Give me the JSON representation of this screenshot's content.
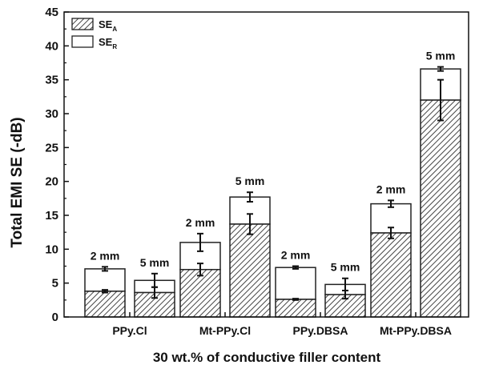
{
  "chart_data": {
    "type": "bar",
    "stacked": true,
    "xlabel": "30 wt.% of conductive filler content",
    "ylabel": "Total EMI SE (-dB)",
    "ylim": [
      0,
      45
    ],
    "yticks": [
      0,
      5,
      10,
      15,
      20,
      25,
      30,
      35,
      40,
      45
    ],
    "categories": [
      "PPy.Cl",
      "Mt-PPy.Cl",
      "PPy.DBSA",
      "Mt-PPy.DBSA"
    ],
    "legend": {
      "position": "top-left",
      "entries": [
        {
          "key": "SE_A",
          "main": "SE",
          "sub": "A",
          "fill": "hatched"
        },
        {
          "key": "SE_R",
          "main": "SE",
          "sub": "R",
          "fill": "white"
        }
      ]
    },
    "bars": [
      {
        "category": "PPy.Cl",
        "label": "2 mm",
        "se_a": 3.8,
        "se_a_err": 0.2,
        "total": 7.1,
        "total_err": 0.3
      },
      {
        "category": "PPy.Cl",
        "label": "5 mm",
        "se_a": 3.6,
        "se_a_err": 0.8,
        "total": 5.4,
        "total_err": 1.0
      },
      {
        "category": "Mt-PPy.Cl",
        "label": "2 mm",
        "se_a": 7.0,
        "se_a_err": 0.9,
        "total": 11.0,
        "total_err": 1.3
      },
      {
        "category": "Mt-PPy.Cl",
        "label": "5 mm",
        "se_a": 13.7,
        "se_a_err": 1.5,
        "total": 17.7,
        "total_err": 0.7
      },
      {
        "category": "PPy.DBSA",
        "label": "2 mm",
        "se_a": 2.6,
        "se_a_err": 0.1,
        "total": 7.3,
        "total_err": 0.2
      },
      {
        "category": "PPy.DBSA",
        "label": "5 mm",
        "se_a": 3.3,
        "se_a_err": 0.6,
        "total": 4.8,
        "total_err": 0.9
      },
      {
        "category": "Mt-PPy.DBSA",
        "label": "2 mm",
        "se_a": 12.4,
        "se_a_err": 0.8,
        "total": 16.7,
        "total_err": 0.5
      },
      {
        "category": "Mt-PPy.DBSA",
        "label": "5 mm",
        "se_a": 32.0,
        "se_a_err": 3.0,
        "total": 36.6,
        "total_err": 0.3
      }
    ]
  }
}
